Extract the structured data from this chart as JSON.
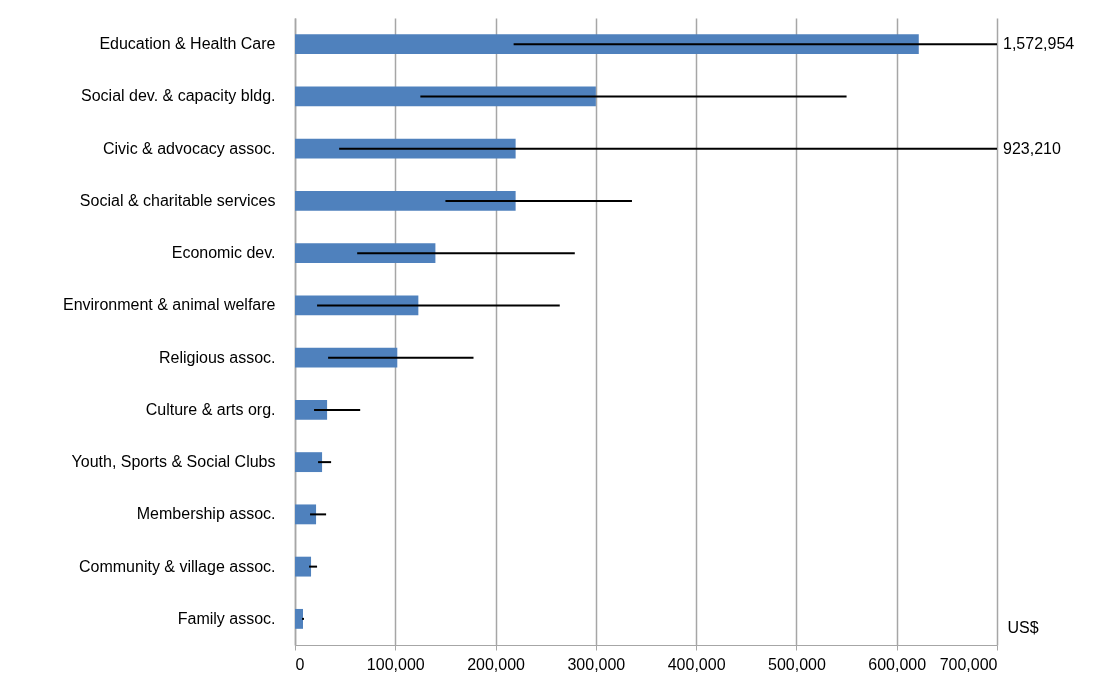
{
  "chart_data": {
    "type": "bar",
    "orientation": "horizontal",
    "xlabel": "US$",
    "categories": [
      "Education & Health Care",
      "Social dev. & capacity bldg.",
      "Civic & advocacy assoc.",
      "Social & charitable services",
      "Economic dev.",
      "Environment & animal welfare",
      "Religious assoc.",
      "Culture & arts org.",
      "Youth, Sports & Social Clubs",
      "Membership assoc.",
      "Community &  village assoc.",
      "Family assoc."
    ],
    "values": [
      622000,
      300000,
      220000,
      220000,
      140000,
      123000,
      102000,
      32000,
      27000,
      21000,
      16000,
      8000
    ],
    "errors": [
      [
        218000,
        700000
      ],
      [
        125000,
        550000
      ],
      [
        44000,
        700000
      ],
      [
        150000,
        336000
      ],
      [
        62000,
        279000
      ],
      [
        22000,
        264000
      ],
      [
        33000,
        178000
      ],
      [
        19000,
        65000
      ],
      [
        23000,
        36000
      ],
      [
        15000,
        31000
      ],
      [
        14000,
        22000
      ],
      [
        7000,
        9000
      ]
    ],
    "color": "#4f81bd",
    "xlim": [
      0,
      700000
    ],
    "xticks": [
      0,
      {
        "value": 100000,
        "label": "100,000"
      },
      {
        "value": 200000,
        "label": "200,000"
      },
      {
        "value": 300000,
        "label": "300,000"
      },
      {
        "value": 400000,
        "label": "400,000"
      },
      {
        "value": 500000,
        "label": "500,000"
      },
      {
        "value": 600000,
        "label": "600,000"
      },
      {
        "value": 700000,
        "label": "700,000"
      }
    ],
    "grid": "x",
    "annotations": [
      {
        "text": "1,572,954",
        "x": 700000,
        "y": "Education & Health Care"
      },
      {
        "text": "923,210",
        "x": 700000,
        "y": "Civic & advocacy assoc."
      }
    ]
  }
}
